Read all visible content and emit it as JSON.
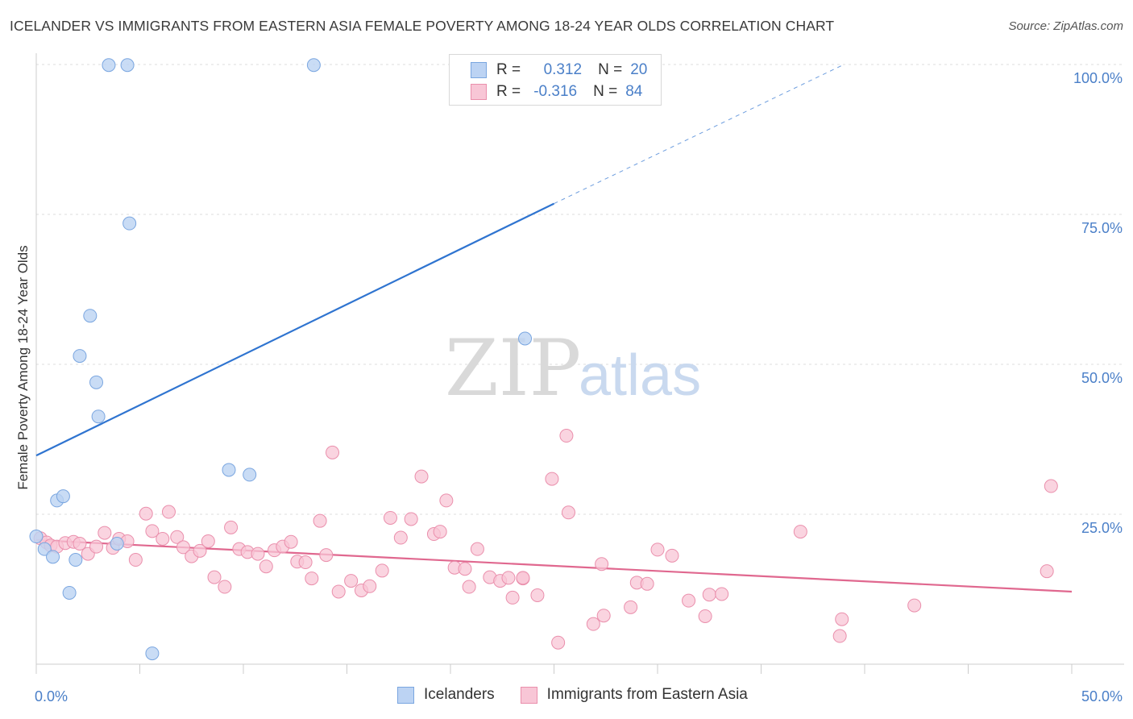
{
  "header": {
    "title": "ICELANDER VS IMMIGRANTS FROM EASTERN ASIA FEMALE POVERTY AMONG 18-24 YEAR OLDS CORRELATION CHART",
    "source": "Source: ZipAtlas.com"
  },
  "legend": {
    "rows": [
      {
        "r_label": "R =",
        "r_value": "0.312",
        "n_label": "N =",
        "n_value": "20"
      },
      {
        "r_label": "R =",
        "r_value": "-0.316",
        "n_label": "N =",
        "n_value": "84"
      }
    ]
  },
  "bottom_legend": {
    "items": [
      {
        "label": "Icelanders"
      },
      {
        "label": "Immigrants from Eastern Asia"
      }
    ]
  },
  "watermark": {
    "zip": "ZIP",
    "atlas": "atlas"
  },
  "colors": {
    "blue_fill": "#bcd3f3",
    "blue_stroke": "#7aa6e0",
    "blue_line": "#2f74d0",
    "pink_fill": "#f8c6d6",
    "pink_stroke": "#ea8fac",
    "pink_line": "#e0688f",
    "grid": "#dddddd",
    "tick_text": "#4a7fc8"
  },
  "chart_data": {
    "type": "scatter",
    "title": "ICELANDER VS IMMIGRANTS FROM EASTERN ASIA FEMALE POVERTY AMONG 18-24 YEAR OLDS CORRELATION CHART",
    "xlabel": "",
    "ylabel": "Female Poverty Among 18-24 Year Olds",
    "xlim": [
      0,
      50
    ],
    "ylim": [
      0,
      100
    ],
    "x_tick_labels": [
      "0.0%",
      "50.0%"
    ],
    "y_tick_labels": [
      "25.0%",
      "50.0%",
      "75.0%",
      "100.0%"
    ],
    "y_ticks": [
      25,
      50,
      75,
      100
    ],
    "grid": true,
    "legend_position": "top-center",
    "series": [
      {
        "name": "Icelanders",
        "r": 0.312,
        "n": 20,
        "points": [
          {
            "x": 0.0,
            "y": 21.3
          },
          {
            "x": 0.4,
            "y": 19.2
          },
          {
            "x": 0.8,
            "y": 17.9
          },
          {
            "x": 1.0,
            "y": 27.3
          },
          {
            "x": 1.3,
            "y": 28.0
          },
          {
            "x": 1.6,
            "y": 11.9
          },
          {
            "x": 1.9,
            "y": 17.4
          },
          {
            "x": 2.1,
            "y": 51.4
          },
          {
            "x": 2.6,
            "y": 58.1
          },
          {
            "x": 2.9,
            "y": 47.0
          },
          {
            "x": 3.0,
            "y": 41.3
          },
          {
            "x": 3.5,
            "y": 99.9
          },
          {
            "x": 3.9,
            "y": 20.1
          },
          {
            "x": 4.4,
            "y": 99.9
          },
          {
            "x": 4.5,
            "y": 73.5
          },
          {
            "x": 5.6,
            "y": 1.8
          },
          {
            "x": 9.3,
            "y": 32.4
          },
          {
            "x": 10.3,
            "y": 31.6
          },
          {
            "x": 13.4,
            "y": 99.9
          },
          {
            "x": 23.6,
            "y": 54.3
          }
        ],
        "trend": {
          "x0": 0,
          "y0": 34.8,
          "x1": 25,
          "y1": 76.8,
          "dashed_to_x": 39,
          "dashed_to_y": 100
        }
      },
      {
        "name": "Immigrants from Eastern Asia",
        "r": -0.316,
        "n": 84,
        "points": [
          {
            "x": 0.2,
            "y": 21.0
          },
          {
            "x": 0.5,
            "y": 20.3
          },
          {
            "x": 0.7,
            "y": 19.8
          },
          {
            "x": 1.0,
            "y": 19.6
          },
          {
            "x": 1.4,
            "y": 20.2
          },
          {
            "x": 1.8,
            "y": 20.4
          },
          {
            "x": 2.1,
            "y": 20.1
          },
          {
            "x": 2.5,
            "y": 18.4
          },
          {
            "x": 2.9,
            "y": 19.6
          },
          {
            "x": 3.3,
            "y": 21.9
          },
          {
            "x": 3.7,
            "y": 19.4
          },
          {
            "x": 4.0,
            "y": 20.9
          },
          {
            "x": 4.4,
            "y": 20.5
          },
          {
            "x": 4.8,
            "y": 17.4
          },
          {
            "x": 5.3,
            "y": 25.1
          },
          {
            "x": 5.6,
            "y": 22.2
          },
          {
            "x": 6.1,
            "y": 20.9
          },
          {
            "x": 6.4,
            "y": 25.4
          },
          {
            "x": 6.8,
            "y": 21.2
          },
          {
            "x": 7.1,
            "y": 19.5
          },
          {
            "x": 7.5,
            "y": 18.0
          },
          {
            "x": 7.9,
            "y": 18.9
          },
          {
            "x": 8.3,
            "y": 20.5
          },
          {
            "x": 8.6,
            "y": 14.5
          },
          {
            "x": 9.1,
            "y": 12.9
          },
          {
            "x": 9.4,
            "y": 22.8
          },
          {
            "x": 9.8,
            "y": 19.2
          },
          {
            "x": 10.2,
            "y": 18.7
          },
          {
            "x": 10.7,
            "y": 18.4
          },
          {
            "x": 11.1,
            "y": 16.3
          },
          {
            "x": 11.5,
            "y": 19.0
          },
          {
            "x": 11.9,
            "y": 19.6
          },
          {
            "x": 12.3,
            "y": 20.4
          },
          {
            "x": 12.6,
            "y": 17.1
          },
          {
            "x": 13.0,
            "y": 17.0
          },
          {
            "x": 13.3,
            "y": 14.3
          },
          {
            "x": 13.7,
            "y": 23.9
          },
          {
            "x": 14.0,
            "y": 18.2
          },
          {
            "x": 14.3,
            "y": 35.3
          },
          {
            "x": 14.6,
            "y": 12.1
          },
          {
            "x": 15.2,
            "y": 13.9
          },
          {
            "x": 15.7,
            "y": 12.3
          },
          {
            "x": 16.1,
            "y": 13.0
          },
          {
            "x": 16.7,
            "y": 15.6
          },
          {
            "x": 17.1,
            "y": 24.4
          },
          {
            "x": 17.6,
            "y": 21.1
          },
          {
            "x": 18.1,
            "y": 24.2
          },
          {
            "x": 18.6,
            "y": 31.3
          },
          {
            "x": 19.2,
            "y": 21.7
          },
          {
            "x": 19.5,
            "y": 22.1
          },
          {
            "x": 19.8,
            "y": 27.3
          },
          {
            "x": 20.2,
            "y": 16.1
          },
          {
            "x": 20.7,
            "y": 15.9
          },
          {
            "x": 20.9,
            "y": 12.9
          },
          {
            "x": 21.3,
            "y": 19.2
          },
          {
            "x": 21.9,
            "y": 14.5
          },
          {
            "x": 22.4,
            "y": 13.9
          },
          {
            "x": 22.8,
            "y": 14.4
          },
          {
            "x": 23.0,
            "y": 11.1
          },
          {
            "x": 23.5,
            "y": 14.3
          },
          {
            "x": 24.2,
            "y": 11.5
          },
          {
            "x": 24.9,
            "y": 30.9
          },
          {
            "x": 25.2,
            "y": 3.6
          },
          {
            "x": 25.6,
            "y": 38.1
          },
          {
            "x": 25.7,
            "y": 25.3
          },
          {
            "x": 26.9,
            "y": 6.7
          },
          {
            "x": 27.3,
            "y": 16.7
          },
          {
            "x": 27.4,
            "y": 8.1
          },
          {
            "x": 28.7,
            "y": 9.5
          },
          {
            "x": 29.0,
            "y": 13.6
          },
          {
            "x": 29.5,
            "y": 13.4
          },
          {
            "x": 30.0,
            "y": 19.1
          },
          {
            "x": 30.7,
            "y": 18.1
          },
          {
            "x": 31.5,
            "y": 10.6
          },
          {
            "x": 32.3,
            "y": 8.0
          },
          {
            "x": 32.5,
            "y": 11.6
          },
          {
            "x": 33.1,
            "y": 11.7
          },
          {
            "x": 36.9,
            "y": 22.1
          },
          {
            "x": 38.9,
            "y": 7.5
          },
          {
            "x": 38.8,
            "y": 4.7
          },
          {
            "x": 42.4,
            "y": 9.8
          },
          {
            "x": 23.5,
            "y": 14.4
          },
          {
            "x": 48.8,
            "y": 15.5
          },
          {
            "x": 49.0,
            "y": 29.7
          }
        ],
        "trend": {
          "x0": 0,
          "y0": 20.7,
          "x1": 50,
          "y1": 12.1
        }
      }
    ]
  }
}
